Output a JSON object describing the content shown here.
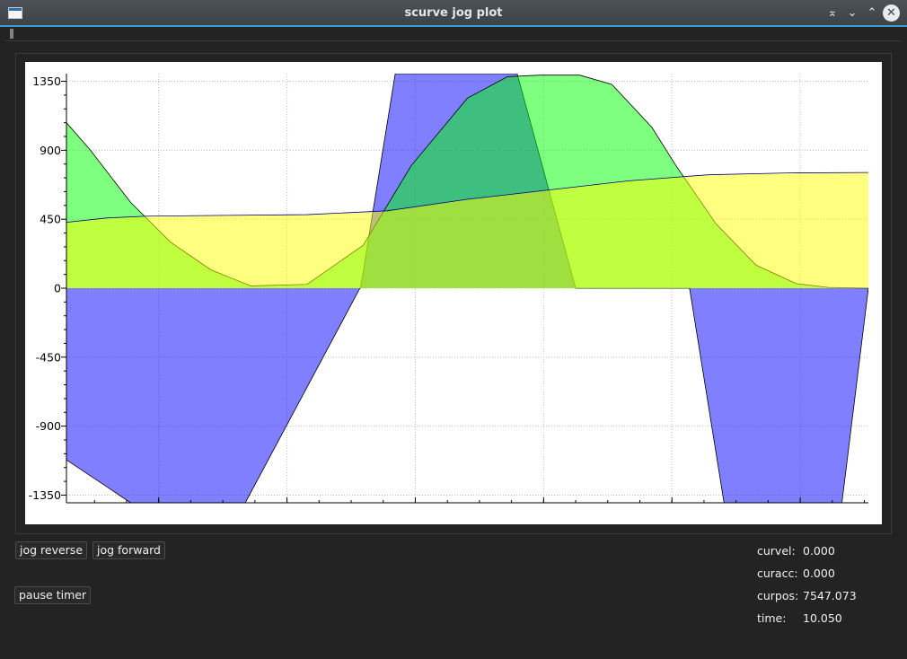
{
  "window": {
    "title": "scurve jog plot",
    "buttons": [
      "keep-above",
      "minimize",
      "maximize",
      "close"
    ]
  },
  "chart_data": {
    "type": "area",
    "title": "",
    "xlabel": "",
    "ylabel": "",
    "grid": true,
    "ylim": [
      -1400,
      1400
    ],
    "y_ticks": [
      "1350",
      "900",
      "450",
      "0",
      "-450",
      "-900",
      "-1350"
    ],
    "y_tick_values": [
      1350,
      900,
      450,
      0,
      -450,
      -900,
      -1350
    ],
    "xlim": [
      0,
      10
    ],
    "series": [
      {
        "fill_color": "#0000ff",
        "x": [
          0.0,
          0.8,
          2.23,
          3.67,
          4.1,
          5.62,
          6.35,
          7.77,
          8.2,
          9.67,
          10.0
        ],
        "values": [
          -1120,
          -1400,
          -1400,
          10,
          1400,
          1400,
          0,
          0,
          -1400,
          -1400,
          0
        ]
      },
      {
        "fill_color": "#00ff00",
        "x": [
          0.0,
          0.3,
          0.8,
          1.3,
          1.8,
          2.3,
          3.0,
          3.7,
          4.3,
          5.0,
          5.5,
          5.9,
          6.4,
          6.8,
          7.3,
          7.6,
          8.1,
          8.6,
          9.1,
          9.5,
          10.0
        ],
        "values": [
          1080,
          900,
          560,
          300,
          120,
          15,
          25,
          280,
          800,
          1240,
          1380,
          1390,
          1390,
          1330,
          1050,
          800,
          420,
          150,
          30,
          5,
          0
        ]
      },
      {
        "fill_color": "#ffff00",
        "x": [
          0.0,
          0.5,
          1.0,
          2.0,
          3.0,
          4.0,
          5.0,
          6.0,
          7.0,
          8.0,
          9.0,
          10.0
        ],
        "values": [
          430,
          458,
          470,
          475,
          480,
          505,
          580,
          640,
          700,
          740,
          752,
          755
        ]
      }
    ]
  },
  "controls": {
    "jog_reverse": "jog reverse",
    "jog_forward": "jog forward",
    "pause_timer": "pause timer"
  },
  "stats": {
    "curvel_label": "curvel:",
    "curvel_value": "0.000",
    "curacc_label": "curacc:",
    "curacc_value": "0.000",
    "curpos_label": "curpos:",
    "curpos_value": "7547.073",
    "time_label": "time:",
    "time_value": "10.050"
  }
}
